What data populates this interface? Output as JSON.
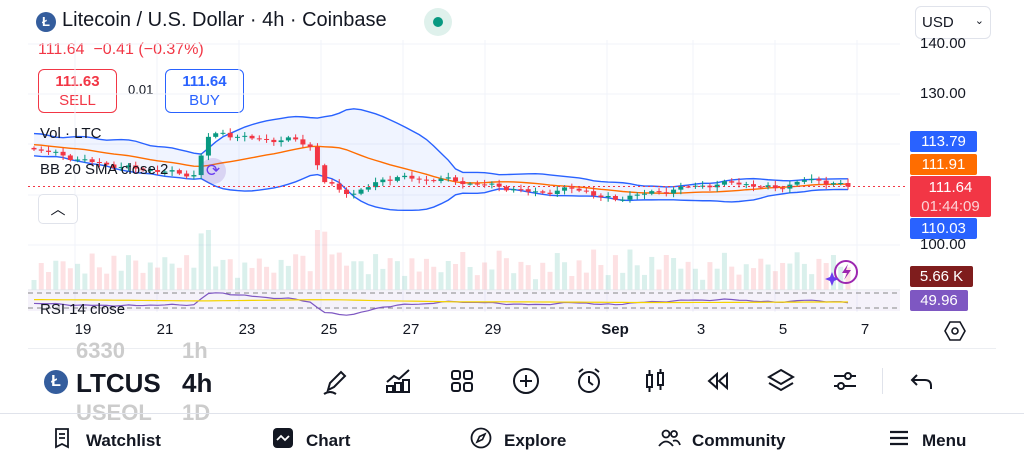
{
  "header": {
    "logo_letter": "Ł",
    "title": "Litecoin / U.S. Dollar · 4h · Coinbase",
    "last": "111.64",
    "change": "−0.41",
    "change_pct": "(−0.37%)",
    "currency": "USD"
  },
  "trade": {
    "sell_price": "111.63",
    "sell_label": "SELL",
    "spread": "0.01",
    "buy_price": "111.64",
    "buy_label": "BUY"
  },
  "legend": {
    "volume": "Vol · LTC",
    "bb": "BB 20 SMA close 2",
    "rsi": "RSI 14 close"
  },
  "price_axis": {
    "ticks": [
      "140.00",
      "130.00",
      "100.00"
    ],
    "bb_upper": "113.79",
    "bb_basis": "111.91",
    "last_price": "111.64",
    "countdown": "01:44:09",
    "bb_lower": "110.03",
    "volume": "5.66 K",
    "rsi": "49.96"
  },
  "time_axis": [
    "19",
    "21",
    "23",
    "25",
    "27",
    "29",
    "Sep",
    "3",
    "5",
    "7"
  ],
  "symbol_picker": {
    "prev": "6330",
    "current": "LTCUS",
    "next": "USEOL"
  },
  "interval_picker": {
    "prev": "1h",
    "current": "4h",
    "next": "1D"
  },
  "toolbar": [
    "drawing-tools",
    "indicators",
    "layouts",
    "add",
    "alert",
    "chart-type",
    "replay",
    "objects",
    "settings",
    "undo"
  ],
  "nav": [
    {
      "label": "Watchlist",
      "icon": "watchlist-icon"
    },
    {
      "label": "Chart",
      "icon": "chart-icon"
    },
    {
      "label": "Explore",
      "icon": "compass-icon"
    },
    {
      "label": "Community",
      "icon": "community-icon"
    },
    {
      "label": "Menu",
      "icon": "menu-icon"
    }
  ],
  "colors": {
    "up": "#089981",
    "down": "#f23645",
    "bb": "#2962ff",
    "basis": "#ff6d00",
    "rsi": "#7e57c2"
  },
  "chart_data": {
    "type": "candlestick",
    "interval": "4h",
    "keypoints_close": [
      119,
      118.5,
      117.8,
      117,
      116.5,
      116,
      115.5,
      115.2,
      114.9,
      114.6,
      114.2,
      113.9,
      121.5,
      122.3,
      121.5,
      121.2,
      120.9,
      120.8,
      121,
      119.5,
      112.5,
      111,
      110.2,
      111.5,
      113,
      113.5,
      113.2,
      112.9,
      113.2,
      112.7,
      112.2,
      112,
      111.6,
      111.1,
      110.6,
      110.4,
      110.8,
      111.2,
      110.7,
      109.5,
      109,
      109.8,
      110.2,
      110.5,
      111,
      111.6,
      111.8,
      112,
      112.4,
      112.1,
      111.5,
      111.3,
      112,
      112.9,
      112.8,
      112.3,
      111.6
    ],
    "price_range": [
      96,
      142
    ]
  }
}
